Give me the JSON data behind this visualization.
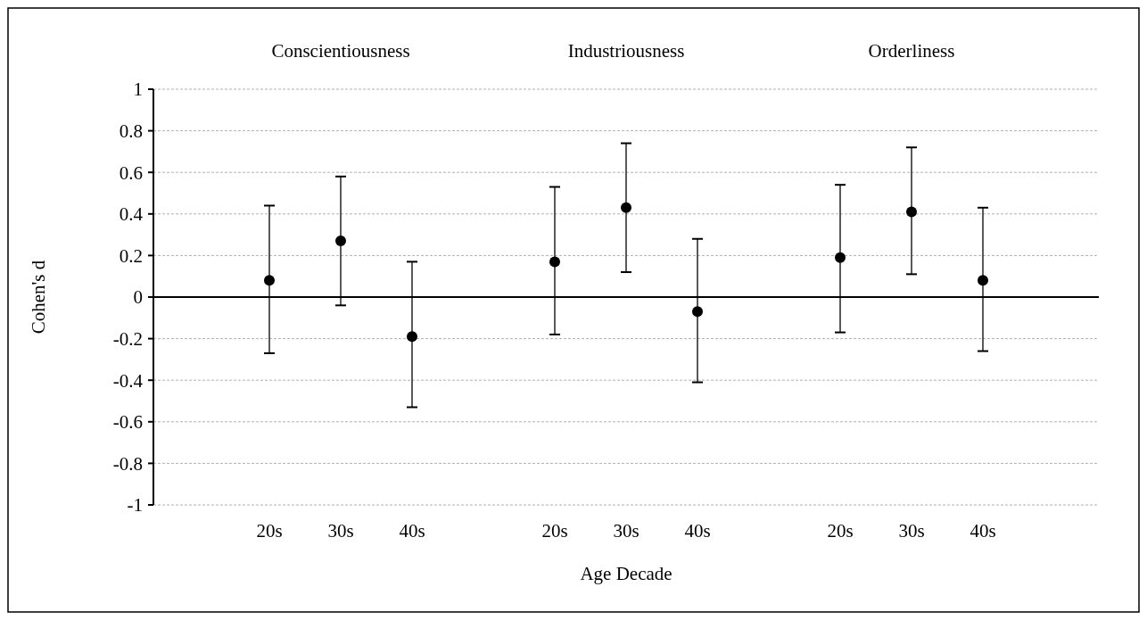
{
  "chart_data": {
    "type": "scatter",
    "xlabel": "Age Decade",
    "ylabel": "Cohen's d",
    "annotations": [
      "Conscientiousness",
      "Industriousness",
      "Orderliness"
    ],
    "categories": [
      "20s",
      "30s",
      "40s",
      null,
      "20s",
      "30s",
      "40s",
      null,
      "20s",
      "30s",
      "40s"
    ],
    "values": [
      0.08,
      0.27,
      -0.19,
      null,
      0.17,
      0.43,
      -0.07,
      null,
      0.19,
      0.41,
      0.08
    ],
    "errors": [
      [
        -0.27,
        0.44
      ],
      [
        -0.04,
        0.58
      ],
      [
        -0.53,
        0.17
      ],
      null,
      [
        -0.18,
        0.53
      ],
      [
        0.12,
        0.74
      ],
      [
        -0.41,
        0.28
      ],
      null,
      [
        -0.17,
        0.54
      ],
      [
        0.11,
        0.72
      ],
      [
        -0.26,
        0.43
      ]
    ],
    "color": "#000000",
    "marker": "circle",
    "ylim": [
      -1,
      1
    ],
    "yticks": [
      -1,
      -0.8,
      -0.6,
      -0.4,
      -0.2,
      0,
      0.2,
      0.4,
      0.6,
      0.8,
      1
    ],
    "grid": "y"
  }
}
